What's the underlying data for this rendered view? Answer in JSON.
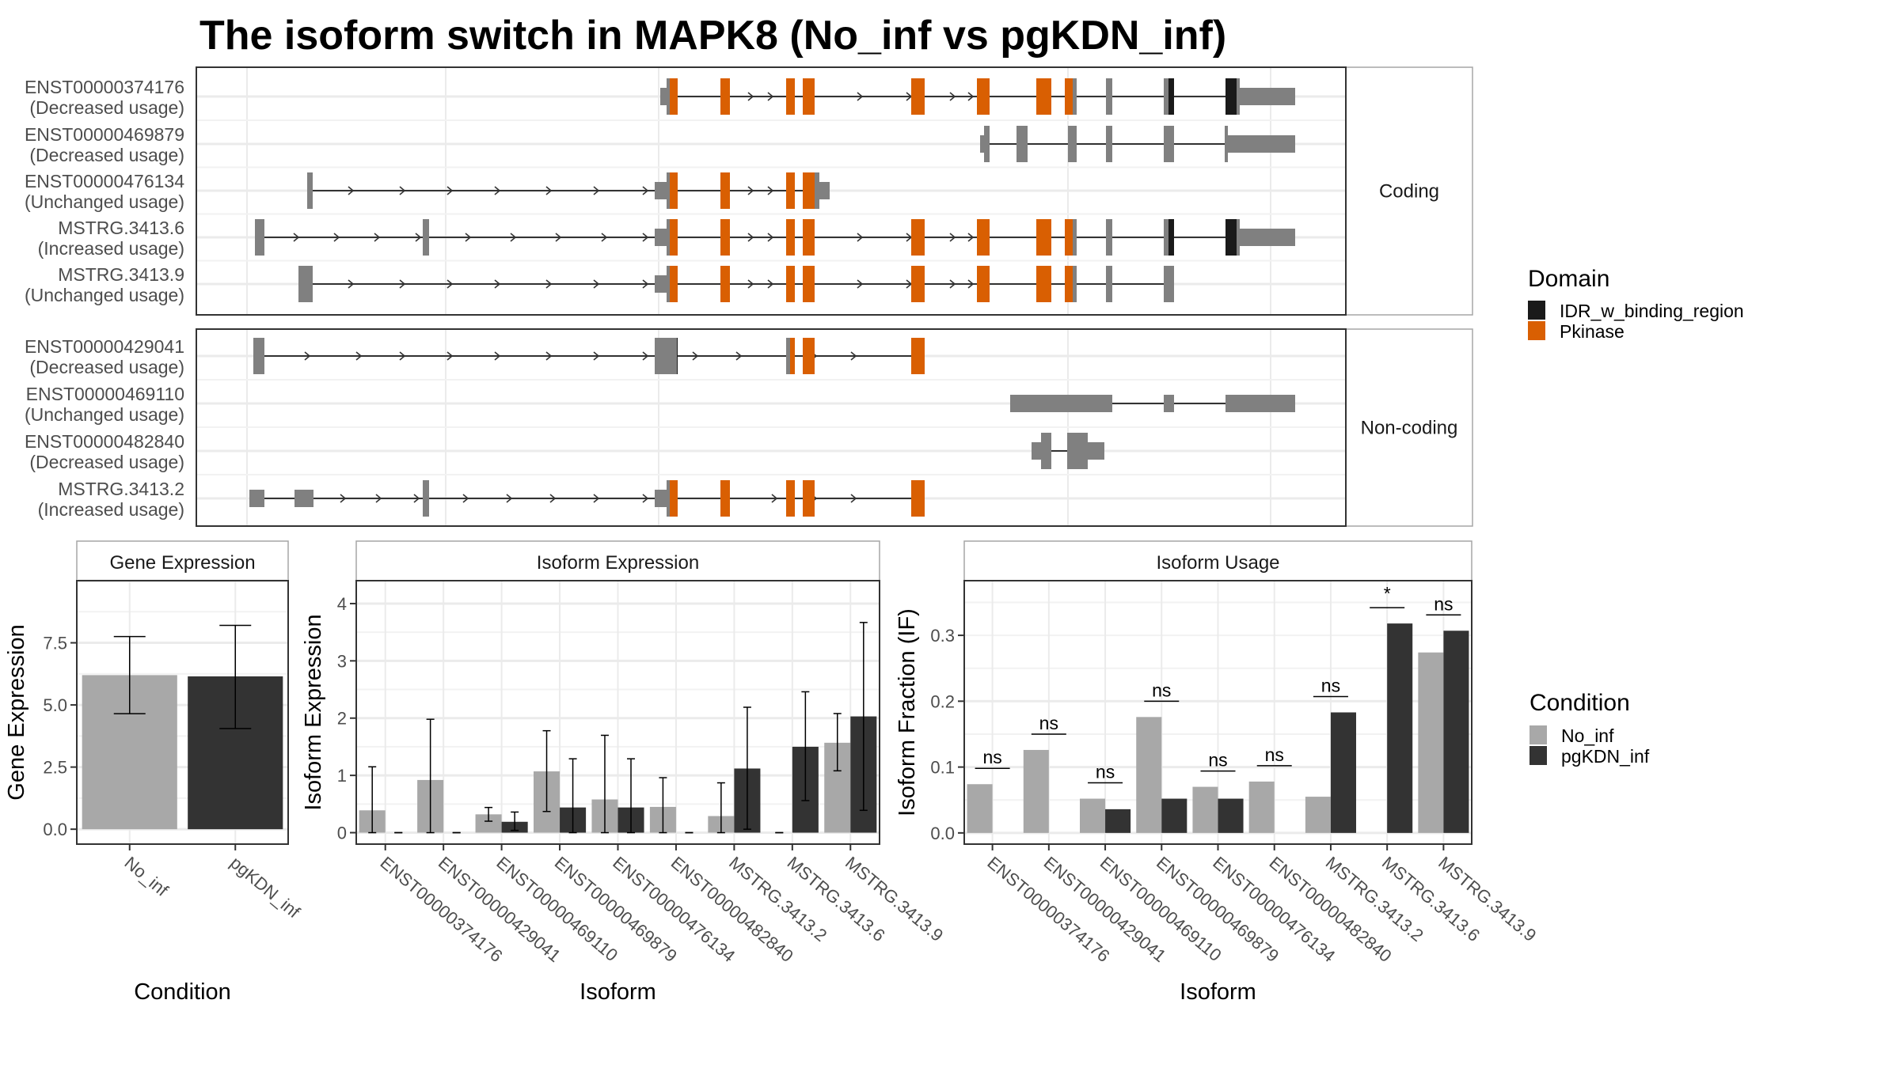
{
  "chart_data": [
    {
      "type": "gene-structure",
      "title": "The isoform switch in MAPK8 (No_inf vs pgKDN_inf)",
      "facets": [
        {
          "label": "Coding",
          "isoforms": [
            {
              "id": "ENST00000374176",
              "usage": "(Decreased usage)"
            },
            {
              "id": "ENST00000469879",
              "usage": "(Decreased usage)"
            },
            {
              "id": "ENST00000476134",
              "usage": "(Unchanged usage)"
            },
            {
              "id": "MSTRG.3413.6",
              "usage": "(Increased usage)"
            },
            {
              "id": "MSTRG.3413.9",
              "usage": "(Unchanged usage)"
            }
          ]
        },
        {
          "label": "Non-coding",
          "isoforms": [
            {
              "id": "ENST00000429041",
              "usage": "(Decreased usage)"
            },
            {
              "id": "ENST00000469110",
              "usage": "(Unchanged usage)"
            },
            {
              "id": "ENST00000482840",
              "usage": "(Decreased usage)"
            },
            {
              "id": "MSTRG.3413.2",
              "usage": "(Increased usage)"
            }
          ]
        }
      ],
      "legend": {
        "title": "Domain",
        "position": "right",
        "items": [
          {
            "label": "IDR_w_binding_region",
            "color": "#1a1a1a"
          },
          {
            "label": "Pkinase",
            "color": "#d95f02"
          }
        ]
      }
    },
    {
      "type": "bar",
      "title": "Gene Expression",
      "xlabel": "Condition",
      "ylabel": "Gene Expression",
      "categories": [
        "No_inf",
        "pgKDN_inf"
      ],
      "values": [
        6.2,
        6.15
      ],
      "error_low": [
        4.65,
        4.05
      ],
      "error_high": [
        7.75,
        8.2
      ],
      "colors": [
        "#a8a8a8",
        "#333333"
      ],
      "yticks": [
        "0.0",
        "2.5",
        "5.0",
        "7.5"
      ],
      "ylim": [
        -0.6,
        10.0
      ],
      "grid": true
    },
    {
      "type": "bar",
      "title": "Isoform Expression",
      "xlabel": "Isoform",
      "ylabel": "Isoform Expression",
      "categories": [
        "ENST00000374176",
        "ENST00000429041",
        "ENST00000469110",
        "ENST00000469879",
        "ENST00000476134",
        "ENST00000482840",
        "MSTRG.3413.2",
        "MSTRG.3413.6",
        "MSTRG.3413.9"
      ],
      "series": [
        {
          "name": "No_inf",
          "color": "#a8a8a8",
          "values": [
            0.39,
            0.92,
            0.32,
            1.07,
            0.58,
            0.45,
            0.29,
            0.0,
            1.57
          ],
          "error_low": [
            0.0,
            0.0,
            0.2,
            0.37,
            0.0,
            0.0,
            0.0,
            0.0,
            1.08
          ],
          "error_high": [
            1.15,
            1.98,
            0.44,
            1.78,
            1.7,
            0.96,
            0.87,
            0.0,
            2.08
          ]
        },
        {
          "name": "pgKDN_inf",
          "color": "#333333",
          "values": [
            0.0,
            0.0,
            0.19,
            0.44,
            0.44,
            0.0,
            1.12,
            1.5,
            2.03
          ],
          "error_low": [
            0.0,
            0.0,
            0.04,
            0.0,
            0.0,
            0.0,
            0.06,
            0.56,
            0.39
          ],
          "error_high": [
            0.0,
            0.0,
            0.36,
            1.29,
            1.29,
            0.0,
            2.19,
            2.46,
            3.67
          ]
        }
      ],
      "yticks": [
        "0",
        "1",
        "2",
        "3",
        "4"
      ],
      "ylim": [
        -0.2,
        4.4
      ],
      "grid": true
    },
    {
      "type": "bar",
      "title": "Isoform Usage",
      "xlabel": "Isoform",
      "ylabel": "Isoform Fraction (IF)",
      "categories": [
        "ENST00000374176",
        "ENST00000429041",
        "ENST00000469110",
        "ENST00000469879",
        "ENST00000476134",
        "ENST00000482840",
        "MSTRG.3413.2",
        "MSTRG.3413.6",
        "MSTRG.3413.9"
      ],
      "series": [
        {
          "name": "No_inf",
          "color": "#a8a8a8",
          "values": [
            0.074,
            0.126,
            0.052,
            0.176,
            0.07,
            0.078,
            0.055,
            0.0,
            0.274
          ]
        },
        {
          "name": "pgKDN_inf",
          "color": "#333333",
          "values": [
            0.0,
            0.0,
            0.036,
            0.052,
            0.052,
            0.0,
            0.183,
            0.318,
            0.307
          ]
        }
      ],
      "significance": [
        "ns",
        "ns",
        "ns",
        "ns",
        "ns",
        "ns",
        "ns",
        "*",
        "ns"
      ],
      "yticks": [
        "0.0",
        "0.1",
        "0.2",
        "0.3"
      ],
      "ylim": [
        -0.017,
        0.383
      ],
      "grid": true,
      "legend": {
        "title": "Condition",
        "position": "right",
        "items": [
          {
            "label": "No_inf",
            "color": "#a8a8a8"
          },
          {
            "label": "pgKDN_inf",
            "color": "#333333"
          }
        ]
      }
    }
  ]
}
